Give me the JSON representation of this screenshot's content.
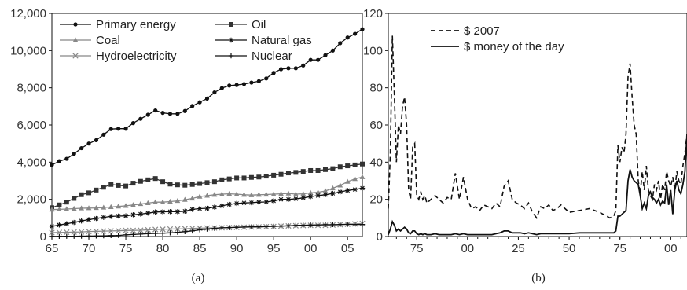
{
  "chart_data": [
    {
      "type": "line",
      "caption": "(a)",
      "x_ticks": [
        "65",
        "70",
        "75",
        "80",
        "85",
        "90",
        "95",
        "00",
        "05"
      ],
      "y_ticks": [
        "0",
        "2,000",
        "4,000",
        "6,000",
        "8,000",
        "10,000",
        "12,000"
      ],
      "xlim": [
        1965,
        2007
      ],
      "ylim": [
        0,
        12000
      ],
      "legend_position": "top-left",
      "x": [
        1965,
        1966,
        1967,
        1968,
        1969,
        1970,
        1971,
        1972,
        1973,
        1974,
        1975,
        1976,
        1977,
        1978,
        1979,
        1980,
        1981,
        1982,
        1983,
        1984,
        1985,
        1986,
        1987,
        1988,
        1989,
        1990,
        1991,
        1992,
        1993,
        1994,
        1995,
        1996,
        1997,
        1998,
        1999,
        2000,
        2001,
        2002,
        2003,
        2004,
        2005,
        2006,
        2007
      ],
      "series": [
        {
          "name": "Primary energy",
          "marker": "circle",
          "color": "#111111",
          "values": [
            3850,
            4050,
            4180,
            4450,
            4750,
            5000,
            5180,
            5480,
            5780,
            5800,
            5800,
            6100,
            6330,
            6550,
            6780,
            6650,
            6600,
            6600,
            6750,
            7020,
            7220,
            7420,
            7750,
            7980,
            8120,
            8150,
            8200,
            8280,
            8350,
            8500,
            8800,
            9000,
            9050,
            9050,
            9200,
            9500,
            9500,
            9750,
            10000,
            10400,
            10700,
            10900,
            11150
          ]
        },
        {
          "name": "Oil",
          "marker": "square",
          "color": "#333333",
          "values": [
            1550,
            1700,
            1850,
            2050,
            2250,
            2350,
            2500,
            2650,
            2800,
            2750,
            2720,
            2870,
            2970,
            3050,
            3120,
            2950,
            2820,
            2780,
            2760,
            2800,
            2850,
            2900,
            2950,
            3050,
            3100,
            3150,
            3150,
            3180,
            3200,
            3250,
            3300,
            3350,
            3420,
            3450,
            3500,
            3550,
            3550,
            3600,
            3650,
            3750,
            3800,
            3850,
            3900
          ]
        },
        {
          "name": "Coal",
          "marker": "triangle",
          "color": "#888888",
          "values": [
            1450,
            1460,
            1480,
            1500,
            1520,
            1530,
            1540,
            1560,
            1590,
            1620,
            1650,
            1700,
            1750,
            1800,
            1850,
            1850,
            1880,
            1920,
            1980,
            2050,
            2150,
            2200,
            2250,
            2280,
            2300,
            2280,
            2250,
            2230,
            2250,
            2260,
            2280,
            2300,
            2320,
            2280,
            2300,
            2350,
            2380,
            2450,
            2600,
            2750,
            2950,
            3100,
            3200
          ]
        },
        {
          "name": "Natural gas",
          "marker": "asterisk",
          "color": "#111111",
          "values": [
            550,
            620,
            690,
            760,
            840,
            910,
            970,
            1030,
            1080,
            1100,
            1110,
            1170,
            1210,
            1260,
            1320,
            1330,
            1340,
            1340,
            1360,
            1460,
            1500,
            1520,
            1580,
            1650,
            1730,
            1780,
            1810,
            1820,
            1850,
            1860,
            1920,
            2000,
            2000,
            2030,
            2080,
            2150,
            2200,
            2250,
            2320,
            2400,
            2480,
            2530,
            2600
          ]
        },
        {
          "name": "Hydroelectricity",
          "marker": "x",
          "color": "#888888",
          "values": [
            210,
            220,
            230,
            240,
            250,
            270,
            280,
            290,
            300,
            310,
            330,
            330,
            340,
            360,
            380,
            390,
            400,
            410,
            420,
            440,
            450,
            460,
            460,
            470,
            480,
            490,
            500,
            510,
            520,
            530,
            540,
            560,
            570,
            580,
            590,
            600,
            600,
            600,
            620,
            640,
            660,
            680,
            700
          ]
        },
        {
          "name": "Nuclear",
          "marker": "plus",
          "color": "#111111",
          "values": [
            10,
            10,
            15,
            15,
            20,
            25,
            30,
            40,
            50,
            60,
            90,
            110,
            130,
            150,
            170,
            180,
            200,
            230,
            260,
            300,
            360,
            400,
            440,
            470,
            480,
            500,
            510,
            520,
            520,
            540,
            550,
            560,
            580,
            600,
            610,
            620,
            630,
            640,
            640,
            650,
            660,
            650,
            650
          ]
        }
      ]
    },
    {
      "type": "line",
      "caption": "(b)",
      "x_ticks": [
        "75",
        "00",
        "25",
        "50",
        "75",
        "00"
      ],
      "y_ticks": [
        "0",
        "20",
        "40",
        "60",
        "80",
        "100",
        "120"
      ],
      "xlim": [
        1861,
        2008
      ],
      "ylim": [
        0,
        120
      ],
      "legend_position": "top-left",
      "x": [
        1861,
        1862,
        1863,
        1864,
        1865,
        1866,
        1867,
        1868,
        1869,
        1870,
        1871,
        1872,
        1873,
        1874,
        1875,
        1876,
        1877,
        1878,
        1879,
        1880,
        1882,
        1884,
        1886,
        1888,
        1890,
        1892,
        1894,
        1896,
        1898,
        1900,
        1902,
        1904,
        1906,
        1908,
        1910,
        1912,
        1914,
        1916,
        1918,
        1920,
        1922,
        1924,
        1926,
        1928,
        1930,
        1932,
        1934,
        1936,
        1938,
        1940,
        1942,
        1944,
        1946,
        1948,
        1950,
        1955,
        1960,
        1965,
        1970,
        1972,
        1973,
        1974,
        1975,
        1976,
        1977,
        1978,
        1979,
        1980,
        1981,
        1982,
        1983,
        1984,
        1985,
        1986,
        1987,
        1988,
        1989,
        1990,
        1991,
        1992,
        1993,
        1994,
        1995,
        1996,
        1997,
        1998,
        1999,
        2000,
        2001,
        2002,
        2003,
        2004,
        2005,
        2006,
        2007,
        2008
      ],
      "series": [
        {
          "name": "$ 2007",
          "dash": "dashed",
          "color": "#111111",
          "values": [
            15,
            45,
            108,
            75,
            40,
            60,
            55,
            70,
            75,
            60,
            25,
            20,
            48,
            50,
            22,
            20,
            24,
            20,
            22,
            18,
            20,
            22,
            20,
            18,
            21,
            20,
            34,
            20,
            32,
            20,
            15,
            16,
            14,
            17,
            16,
            15,
            18,
            16,
            27,
            30,
            20,
            18,
            17,
            15,
            18,
            13,
            10,
            16,
            15,
            17,
            14,
            15,
            17,
            15,
            13,
            14,
            15,
            13,
            10,
            11,
            14,
            49,
            40,
            48,
            45,
            55,
            86,
            93,
            75,
            60,
            55,
            30,
            23,
            35,
            25,
            38,
            25,
            22,
            20,
            28,
            25,
            30,
            20,
            28,
            25,
            35,
            30,
            27,
            32,
            25,
            35,
            30,
            28,
            38,
            45,
            55
          ]
        },
        {
          "name": "$ money of the day",
          "dash": "solid",
          "color": "#111111",
          "values": [
            1,
            4,
            8,
            6,
            3,
            4,
            3,
            4,
            5,
            4,
            2,
            1.5,
            3,
            3,
            1.5,
            1,
            1.5,
            1,
            1.5,
            1,
            1,
            1.5,
            1,
            1,
            1,
            1,
            1.5,
            1,
            1.5,
            1,
            1,
            1,
            1,
            1,
            1,
            1,
            1.5,
            2,
            3,
            3,
            2,
            2,
            2,
            1.5,
            2,
            1.5,
            1,
            1.5,
            1.5,
            1.5,
            1.5,
            1.5,
            1.5,
            1.5,
            1.5,
            2,
            2,
            2,
            2,
            2,
            3,
            11,
            11,
            12,
            13,
            14,
            30,
            36,
            32,
            30,
            29,
            28,
            22,
            15,
            18,
            15,
            22,
            24,
            21,
            20,
            18,
            20,
            17,
            19,
            18,
            28,
            17,
            25,
            12,
            25,
            30,
            25,
            23,
            28,
            35,
            55
          ]
        }
      ]
    }
  ]
}
